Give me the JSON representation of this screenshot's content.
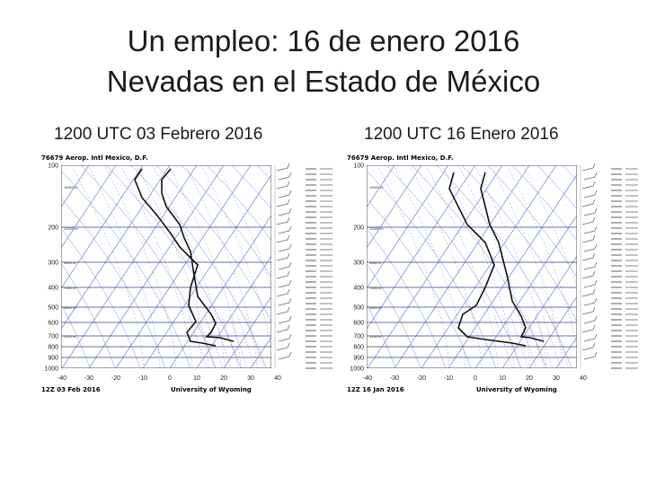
{
  "title_line1": "Un empleo: 16 de enero 2016",
  "title_line2": "Nevadas en el Estado de México",
  "caption_left": "1200 UTC 03 Febrero 2016",
  "caption_right": "1200 UTC 16 Enero 2016",
  "pressure_labels": [
    "100",
    "200",
    "300",
    "400",
    "500",
    "600",
    "700",
    "800",
    "900",
    "1000"
  ],
  "temperature_labels": [
    "-40",
    "-30",
    "-20",
    "-10",
    "0",
    "10",
    "20",
    "30",
    "40"
  ],
  "soundings": [
    {
      "station_header": "76679 Aerop. Intl Mexico, D.F.",
      "date_label": "12Z 03 Feb 2016",
      "credit": "University of Wyoming"
    },
    {
      "station_header": "76679 Aerop. Intl Mexico, D.F.",
      "date_label": "12Z 16 Jan 2016",
      "credit": "University of Wyoming"
    }
  ],
  "colors": {
    "isobar": "#3b3b8f",
    "isotherm": "#4a6fd0",
    "adiabat": "#7a8fc0",
    "sounding": "#111111",
    "wind": "#666666"
  }
}
